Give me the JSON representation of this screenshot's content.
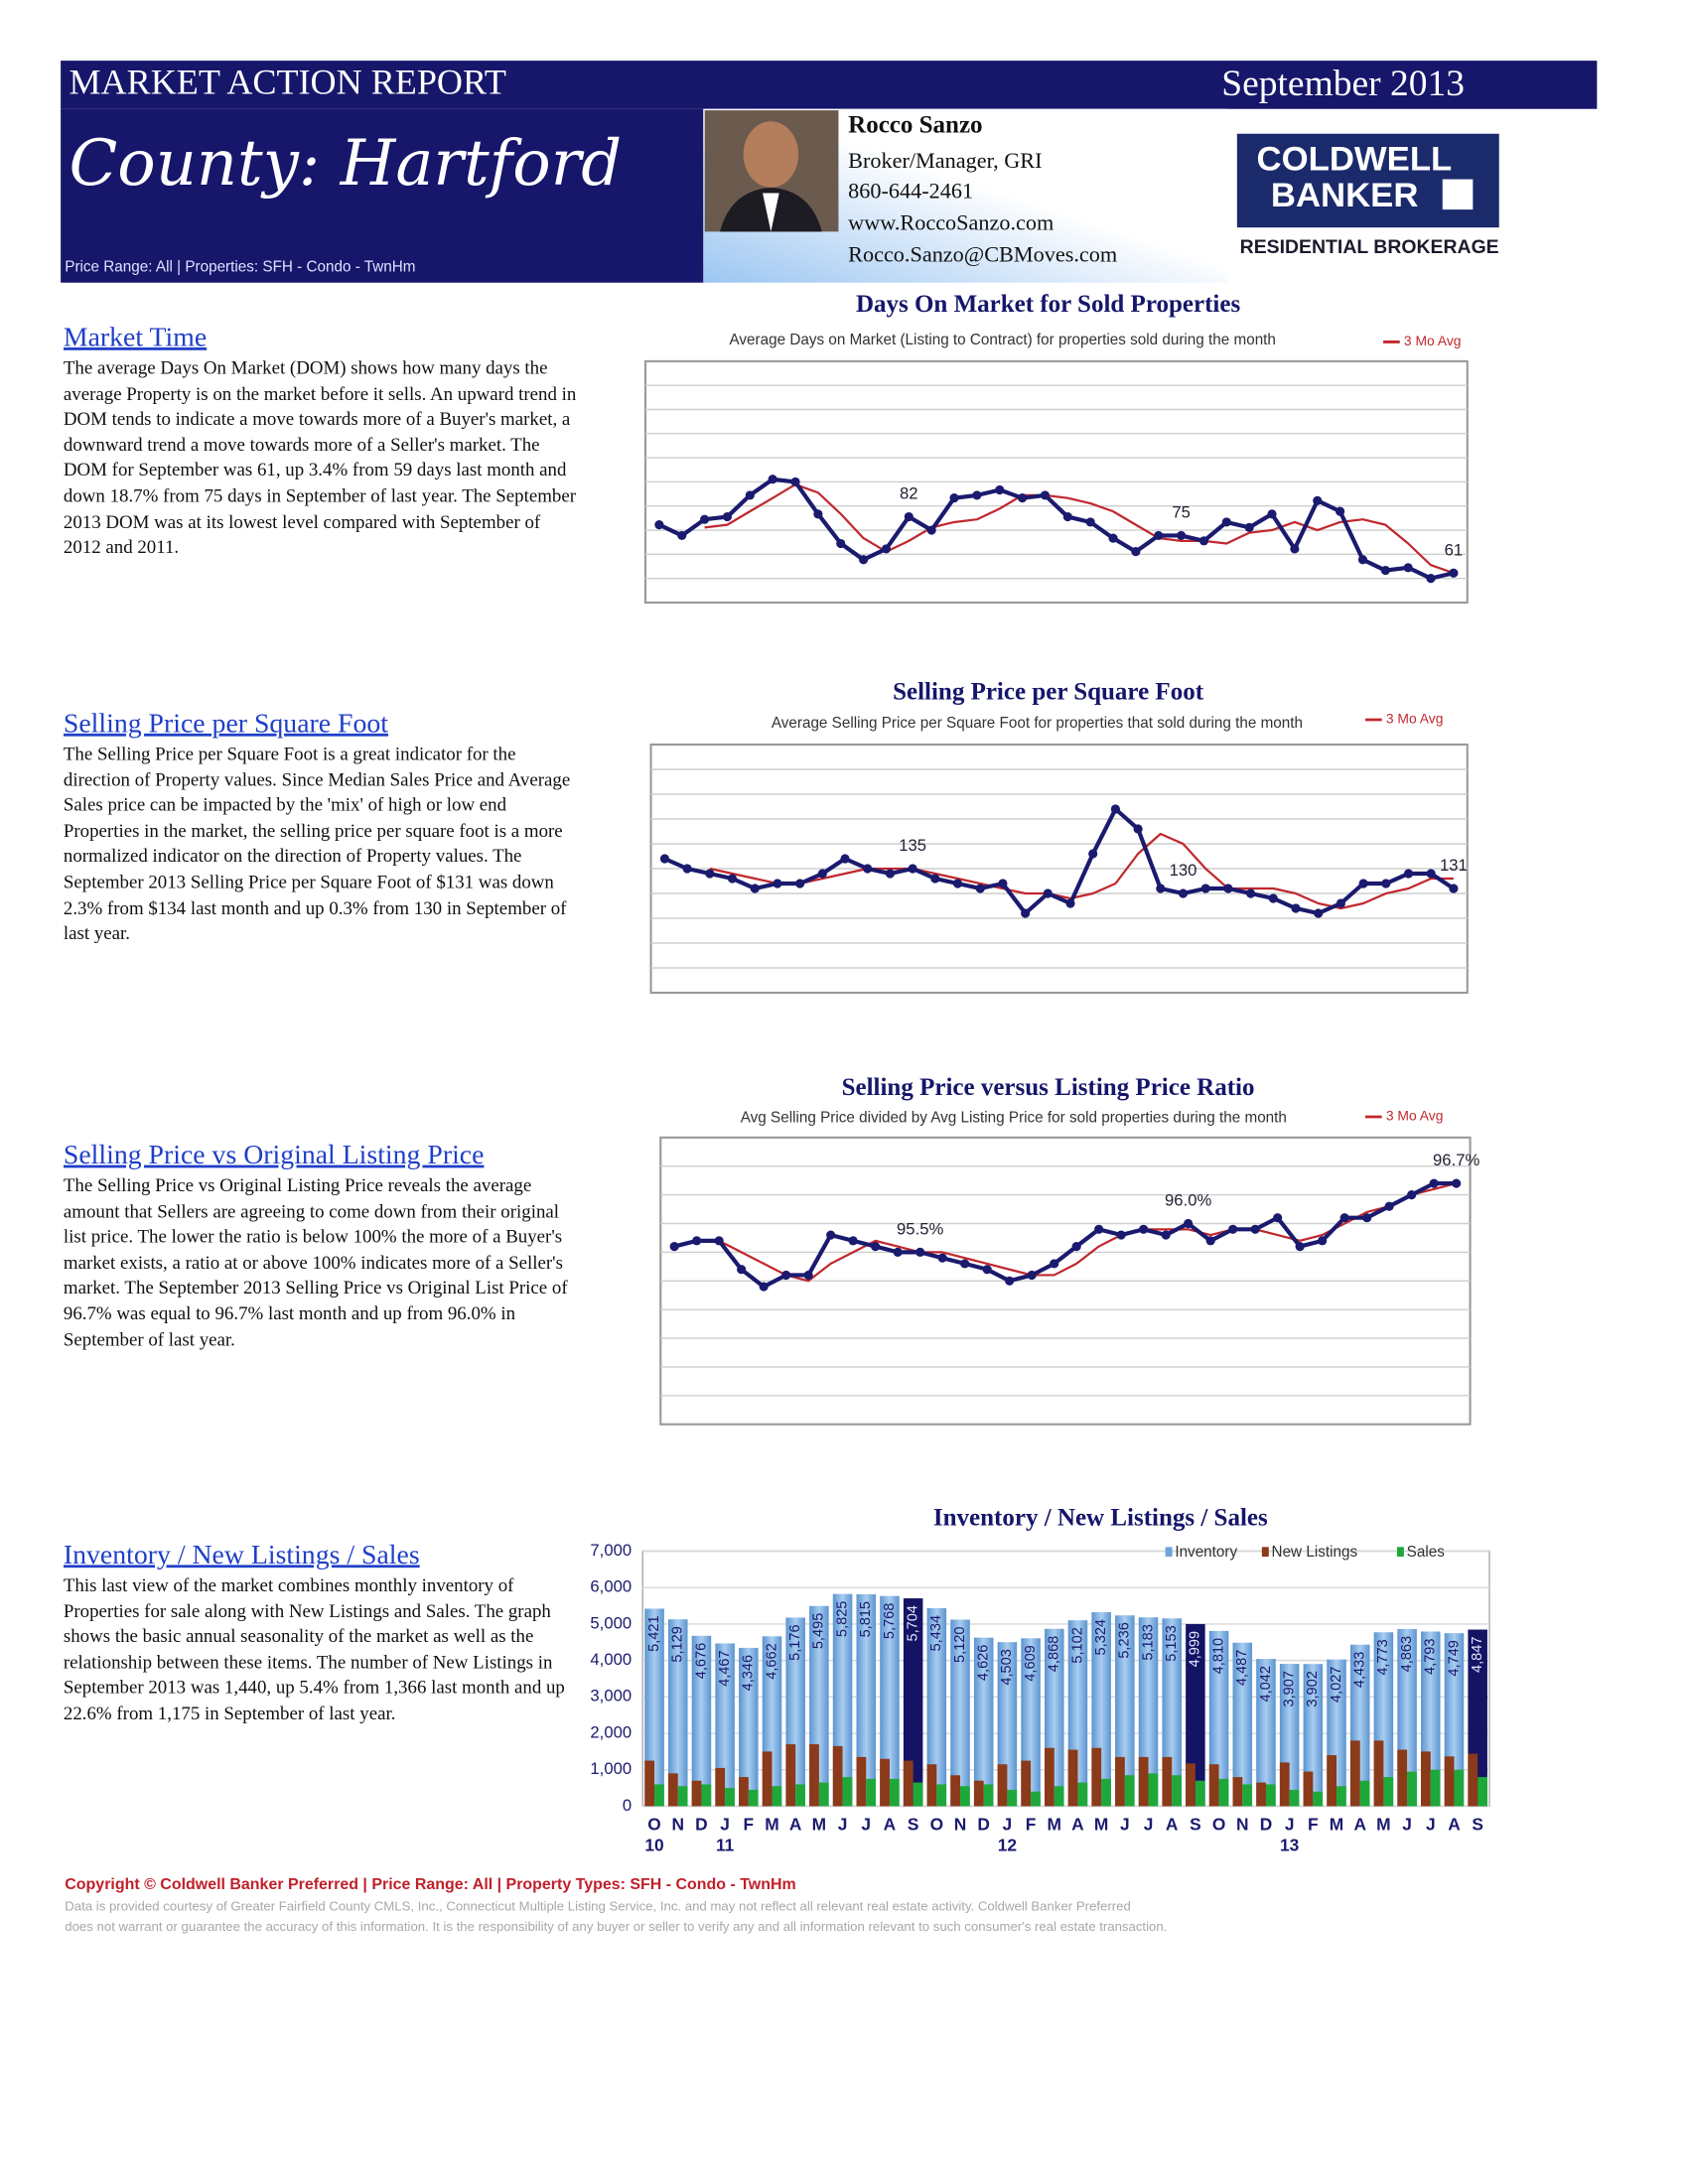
{
  "header": {
    "report_title": "MARKET ACTION REPORT",
    "date": "September 2013",
    "area": "County: Hartford",
    "filters": "Price Range:  All | Properties:  SFH - Condo - TwnHm"
  },
  "agent": {
    "name": "Rocco Sanzo",
    "title": "Broker/Manager, GRI",
    "phone": "860-644-2461",
    "website": "www.RoccoSanzo.com",
    "email": "Rocco.Sanzo@CBMoves.com"
  },
  "logo": {
    "line1": "COLDWELL",
    "line2": "BANKER",
    "tagline": "RESIDENTIAL BROKERAGE"
  },
  "sections": [
    {
      "heading": "Market Time",
      "text": "The average Days On Market (DOM) shows how many days the average Property is on the market before it sells.  An upward trend in DOM tends to indicate a move towards more of a Buyer's market, a downward trend a move towards more of a Seller's market.  The DOM for September was 61, up 3.4% from 59 days last month and down 18.7% from 75 days in September of last year.  The September 2013 DOM was at its lowest level compared with September of 2012 and 2011."
    },
    {
      "heading": "Selling Price per Square Foot",
      "text": "The Selling Price per Square Foot is a great indicator for the direction of Property values.  Since Median Sales Price and Average Sales price can be impacted by the 'mix' of high or low end Properties in the market, the selling price per square foot is a more normalized indicator on the direction of Property values.  The September 2013 Selling Price per Square Foot of $131 was down 2.3% from $134 last month and up 0.3% from 130 in September of last year."
    },
    {
      "heading": "Selling Price vs Original Listing Price",
      "text": "The Selling Price vs Original Listing Price reveals the average amount that Sellers are agreeing to come down from their original list price.  The lower the ratio is below 100% the more of a Buyer's market exists, a ratio at or above 100% indicates more of a Seller's market.  The September 2013 Selling Price vs Original List Price of 96.7% was equal to 96.7% last month and up from 96.0% in September of last year."
    },
    {
      "heading": "Inventory / New Listings / Sales",
      "text": "This last view of the market combines monthly inventory of Properties for sale along with New Listings and Sales.  The graph shows the basic annual seasonality of the market as well as the relationship between these items.  The number of New Listings in September 2013 was 1,440, up 5.4% from 1,366 last month and up 22.6% from 1,175 in September of last year."
    }
  ],
  "chart_data": [
    {
      "type": "line",
      "title": "Days On Market for Sold Properties",
      "subtitle": "Average Days on Market (Listing to Contract) for properties sold during the month",
      "ylim": [
        50,
        140
      ],
      "grid": true,
      "series": [
        {
          "color": "#1a1a6e",
          "values": [
            79,
            75,
            81,
            82,
            90,
            96,
            95,
            83,
            72,
            66,
            70,
            82,
            77,
            89,
            90,
            92,
            89,
            90,
            82,
            80,
            74,
            69,
            75,
            75,
            73,
            80,
            78,
            83,
            70,
            88,
            84,
            66,
            62,
            63,
            59,
            61
          ],
          "value_labels": [
            null,
            null,
            null,
            null,
            null,
            null,
            null,
            null,
            null,
            null,
            null,
            "82",
            null,
            null,
            null,
            null,
            null,
            null,
            null,
            null,
            null,
            null,
            null,
            "75",
            null,
            null,
            null,
            null,
            null,
            null,
            null,
            null,
            null,
            null,
            null,
            "61"
          ]
        },
        {
          "name": "3 Mo Avg",
          "color": "#c0282d",
          "values": [
            null,
            null,
            78,
            79,
            84,
            89,
            94,
            91,
            83,
            74,
            69,
            73,
            78,
            80,
            81,
            85,
            90,
            90,
            89,
            87,
            84,
            79,
            74,
            73,
            73,
            72,
            76,
            77,
            80,
            77,
            80,
            81,
            79,
            72,
            64,
            61
          ]
        }
      ]
    },
    {
      "type": "line",
      "title": "Selling Price per Square Foot",
      "subtitle": "Average Selling Price per Square Foot for properties that sold during the month",
      "ylim": [
        110,
        160
      ],
      "grid": true,
      "series": [
        {
          "color": "#1a1a6e",
          "values": [
            137,
            135,
            134,
            133,
            131,
            132,
            132,
            134,
            137,
            135,
            134,
            135,
            133,
            132,
            131,
            132,
            126,
            130,
            128,
            138,
            147,
            143,
            131,
            130,
            131,
            131,
            130,
            129,
            127,
            126,
            128,
            132,
            132,
            134,
            134,
            131
          ],
          "value_labels": [
            null,
            null,
            null,
            null,
            null,
            null,
            null,
            null,
            null,
            null,
            null,
            "135",
            null,
            null,
            null,
            null,
            null,
            null,
            null,
            null,
            null,
            null,
            null,
            "130",
            null,
            null,
            null,
            null,
            null,
            null,
            null,
            null,
            null,
            null,
            null,
            "131"
          ]
        },
        {
          "name": "3 Mo Avg",
          "color": "#c0282d",
          "values": [
            null,
            null,
            135,
            134,
            133,
            132,
            132,
            133,
            134,
            135,
            135,
            135,
            134,
            133,
            132,
            131,
            130,
            130,
            129,
            130,
            132,
            138,
            142,
            140,
            135,
            131,
            131,
            131,
            130,
            128,
            127,
            128,
            130,
            131,
            133,
            133
          ]
        }
      ]
    },
    {
      "type": "line",
      "title": "Selling Price versus Listing Price Ratio",
      "subtitle": "Avg Selling Price divided by Avg Listing Price for sold properties during the month",
      "ylim": [
        92.5,
        97.5
      ],
      "grid": true,
      "series": [
        {
          "color": "#1a1a6e",
          "values": [
            95.6,
            95.7,
            95.7,
            95.2,
            94.9,
            95.1,
            95.1,
            95.8,
            95.7,
            95.6,
            95.5,
            95.5,
            95.4,
            95.3,
            95.2,
            95.0,
            95.1,
            95.3,
            95.6,
            95.9,
            95.8,
            95.9,
            95.8,
            96.0,
            95.7,
            95.9,
            95.9,
            96.1,
            95.6,
            95.7,
            96.1,
            96.1,
            96.3,
            96.5,
            96.7,
            96.7
          ],
          "value_labels": [
            null,
            null,
            null,
            null,
            null,
            null,
            null,
            null,
            null,
            null,
            null,
            "95.5%",
            null,
            null,
            null,
            null,
            null,
            null,
            null,
            null,
            null,
            null,
            null,
            "96.0%",
            null,
            null,
            null,
            null,
            null,
            null,
            null,
            null,
            null,
            null,
            null,
            "96.7%"
          ]
        },
        {
          "name": "3 Mo Avg",
          "color": "#c0282d",
          "values": [
            null,
            null,
            95.7,
            95.5,
            95.3,
            95.1,
            95.0,
            95.3,
            95.5,
            95.7,
            95.6,
            95.5,
            95.5,
            95.4,
            95.3,
            95.2,
            95.1,
            95.1,
            95.3,
            95.6,
            95.8,
            95.9,
            95.9,
            95.9,
            95.8,
            95.9,
            95.9,
            95.8,
            95.7,
            95.8,
            96.0,
            96.2,
            96.3,
            96.5,
            96.6,
            96.7
          ]
        }
      ]
    },
    {
      "type": "bar",
      "title": "Inventory / New Listings / Sales",
      "ylim": [
        0,
        7000
      ],
      "yticks": [
        0,
        {
          "value": 1000,
          "label": "1,000"
        },
        {
          "value": 2000,
          "label": "2,000"
        },
        {
          "value": 3000,
          "label": "3,000"
        },
        {
          "value": 4000,
          "label": "4,000"
        },
        {
          "value": 5000,
          "label": "5,000"
        },
        {
          "value": 6000,
          "label": "6,000"
        },
        {
          "value": 7000,
          "label": "7,000"
        }
      ],
      "categories": [
        "O",
        "N",
        "D",
        "J",
        "F",
        "M",
        "A",
        "M",
        "J",
        "J",
        "A",
        "S",
        "O",
        "N",
        "D",
        "J",
        "F",
        "M",
        "A",
        "M",
        "J",
        "J",
        "A",
        "S",
        "O",
        "N",
        "D",
        "J",
        "F",
        "M",
        "A",
        "M",
        "J",
        "J",
        "A",
        "S"
      ],
      "x_group_labels": [
        "10",
        null,
        null,
        "11",
        null,
        null,
        null,
        null,
        null,
        null,
        null,
        null,
        null,
        null,
        null,
        "12",
        null,
        null,
        null,
        null,
        null,
        null,
        null,
        null,
        null,
        null,
        null,
        "13",
        null,
        null,
        null,
        null,
        null,
        null,
        null,
        null
      ],
      "highlight_indices": [
        11,
        23,
        35
      ],
      "highlight_color": "#141464",
      "legend": "top-right",
      "series": [
        {
          "name": "Inventory",
          "color": "#7fb2e5",
          "values": [
            5421,
            5129,
            4676,
            4467,
            4346,
            4662,
            5176,
            5495,
            5825,
            5815,
            5768,
            5704,
            5434,
            5120,
            4626,
            4503,
            4609,
            4868,
            5102,
            5324,
            5236,
            5183,
            5153,
            4999,
            4810,
            4487,
            4042,
            3907,
            3902,
            4027,
            4433,
            4773,
            4863,
            4793,
            4749,
            4847
          ],
          "value_labels": [
            "5,421",
            "5,129",
            "4,676",
            "4,467",
            "4,346",
            "4,662",
            "5,176",
            "5,495",
            "5,825",
            "5,815",
            "5,768",
            "5,704",
            "5,434",
            "5,120",
            "4,626",
            "4,503",
            "4,609",
            "4,868",
            "5,102",
            "5,324",
            "5,236",
            "5,183",
            "5,153",
            "4,999",
            "4,810",
            "4,487",
            "4,042",
            "3,907",
            "3,902",
            "4,027",
            "4,433",
            "4,773",
            "4,863",
            "4,793",
            "4,749",
            "4,847"
          ]
        },
        {
          "name": "New Listings",
          "color": "#8b3a1a",
          "values": [
            1250,
            900,
            700,
            1050,
            800,
            1500,
            1700,
            1700,
            1650,
            1350,
            1300,
            1250,
            1150,
            850,
            700,
            1150,
            1250,
            1600,
            1550,
            1600,
            1350,
            1350,
            1350,
            1175,
            1150,
            800,
            650,
            1200,
            950,
            1400,
            1800,
            1800,
            1550,
            1500,
            1366,
            1440
          ]
        },
        {
          "name": "Sales",
          "color": "#1fa83a",
          "values": [
            600,
            550,
            600,
            500,
            450,
            550,
            600,
            650,
            800,
            750,
            750,
            650,
            600,
            550,
            600,
            450,
            400,
            550,
            650,
            750,
            850,
            900,
            850,
            700,
            750,
            600,
            600,
            450,
            400,
            550,
            700,
            800,
            950,
            1000,
            1000,
            800
          ]
        }
      ]
    }
  ],
  "footer": {
    "copyright": "Copyright © Coldwell Banker Preferred  |  Price Range:  All  |  Property Types:  SFH - Condo - TwnHm",
    "disclaimer": [
      "Data is provided courtesy of Greater Fairfield County CMLS, Inc., Connecticut Multiple Listing Service, Inc. and may not reflect all relevant real estate activity.  Coldwell Banker Preferred",
      "does not warrant or guarantee the accuracy of this information.  It is the responsibility of any buyer or seller to verify any and all information relevant to such consumer's real estate transaction."
    ]
  }
}
